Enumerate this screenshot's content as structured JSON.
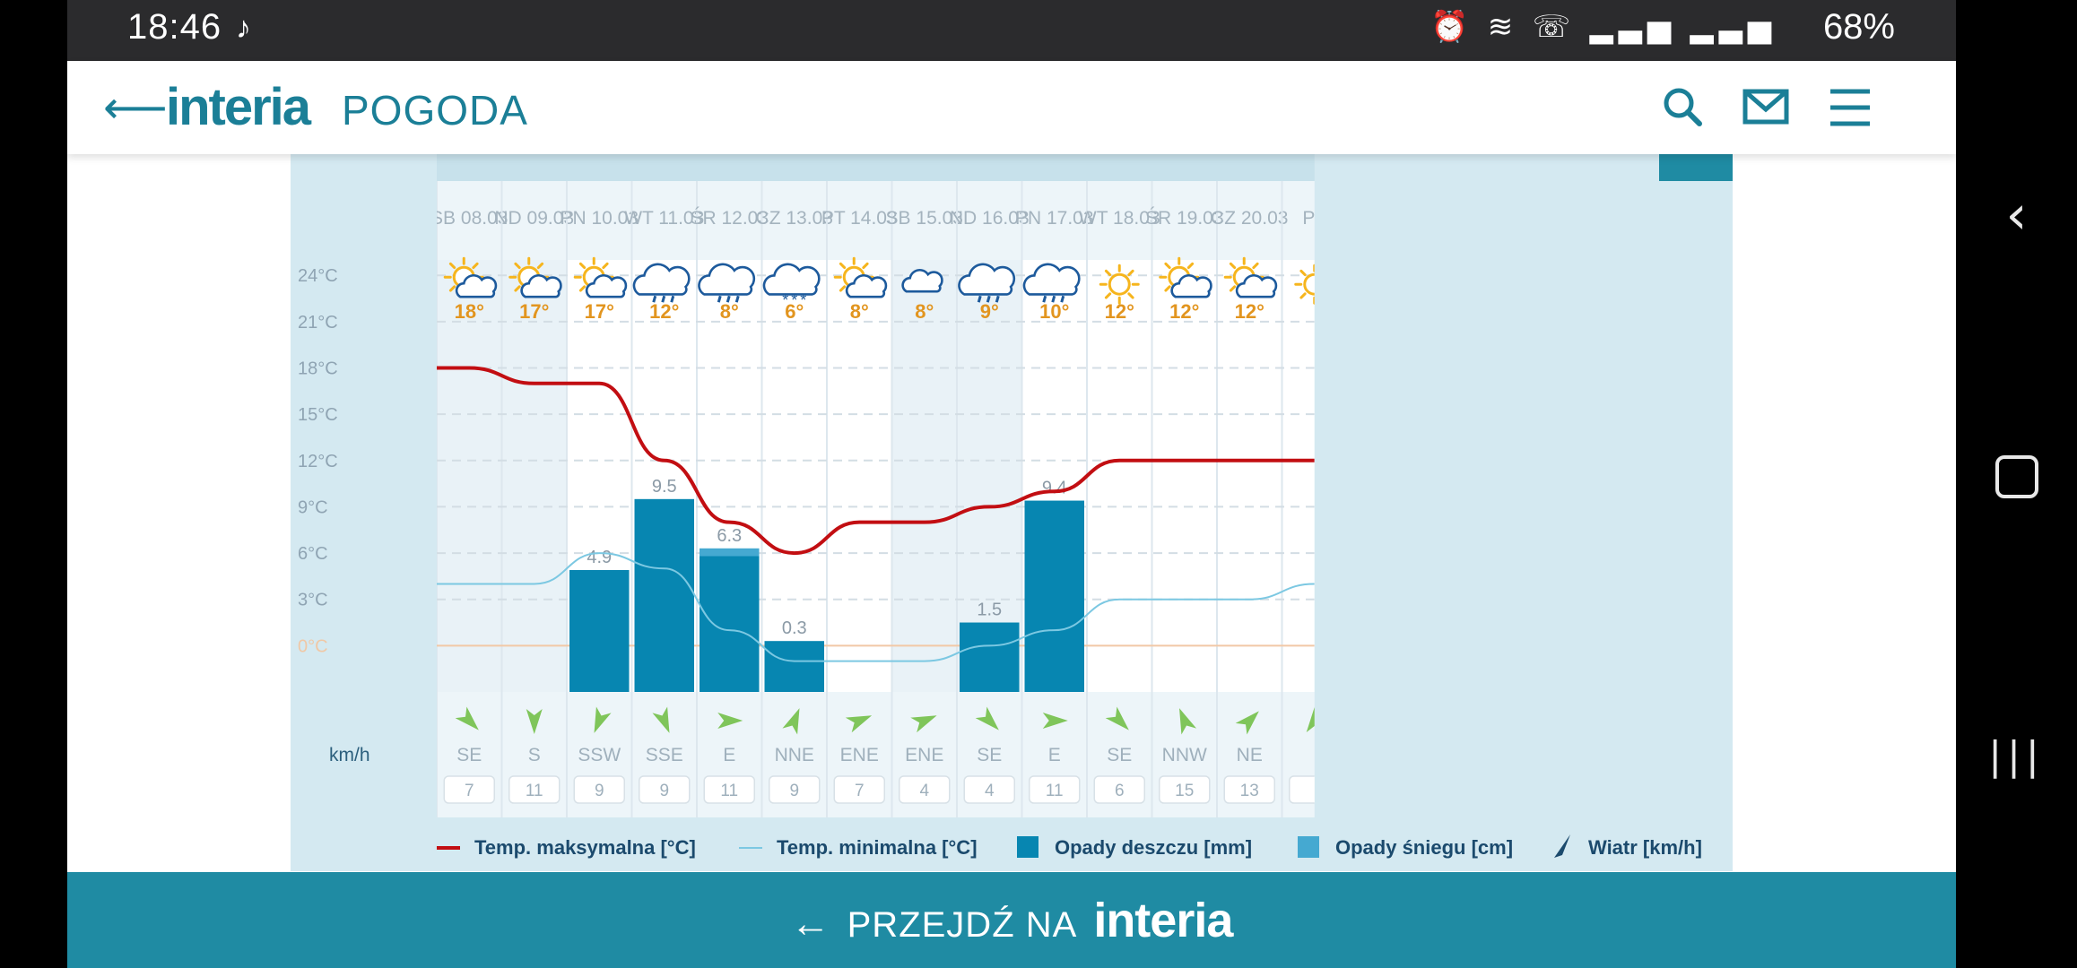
{
  "status_bar": {
    "time": "18:46",
    "battery": "68%"
  },
  "header": {
    "logo": "interia",
    "section": "POGODA"
  },
  "footer": {
    "goto": "PRZEJDŹ NA",
    "brand": "interia"
  },
  "chart_data": {
    "type": "line",
    "categories": [
      "SB 08.03",
      "ND 09.03",
      "PN 10.03",
      "WT 11.03",
      "ŚR 12.03",
      "CZ 13.03",
      "PT 14.03",
      "SB 15.03",
      "ND 16.03",
      "PN 17.03",
      "WT 18.03",
      "ŚR 19.03",
      "CZ 20.03",
      "PT"
    ],
    "weekend": [
      true,
      true,
      false,
      false,
      false,
      false,
      false,
      true,
      true,
      false,
      false,
      false,
      false,
      false
    ],
    "yticks": [
      "24°C",
      "21°C",
      "18°C",
      "15°C",
      "12°C",
      "9°C",
      "6°C",
      "3°C",
      "0°C"
    ],
    "ylim": [
      -3,
      25
    ],
    "series": [
      {
        "name": "Temp. maksymalna [°C]",
        "color": "#c20e12",
        "values": [
          18,
          17,
          17,
          12,
          8,
          6,
          8,
          8,
          9,
          10,
          12,
          12,
          12,
          12
        ]
      },
      {
        "name": "Temp. minimalna [°C]",
        "color": "#7cc8e2",
        "values": [
          4,
          4,
          6,
          5,
          1,
          -1,
          -1,
          -1,
          0,
          1,
          3,
          3,
          3,
          4
        ]
      },
      {
        "name": "Opady deszczu [mm]",
        "color": "#0786b1",
        "values": [
          null,
          null,
          4.9,
          9.5,
          6.3,
          0.3,
          null,
          null,
          1.5,
          9.4,
          null,
          null,
          null,
          null
        ]
      },
      {
        "name": "Opady śniegu [cm]",
        "color": "#45a9d1",
        "values": [
          null,
          null,
          null,
          null,
          0.5,
          null,
          null,
          null,
          null,
          null,
          null,
          null,
          null,
          null
        ]
      }
    ],
    "rain_labels": [
      "",
      "",
      "4.9",
      "9.5",
      "6.3",
      "0.3",
      "",
      "",
      "1.5",
      "9.4",
      "",
      "",
      "",
      ""
    ],
    "day_temps": [
      "18°",
      "17°",
      "17°",
      "12°",
      "8°",
      "6°",
      "8°",
      "8°",
      "9°",
      "10°",
      "12°",
      "12°",
      "12°",
      ""
    ],
    "weather_icons": [
      "sun-cloud-icon",
      "sun-cloud-icon",
      "sun-cloud-icon",
      "rain-cloud-icon",
      "rain-cloud-icon",
      "snow-cloud-icon",
      "sun-cloud-icon",
      "cloud-icon",
      "rain-cloud-icon",
      "rain-cloud-icon",
      "sun-icon",
      "sun-cloud-icon",
      "sun-cloud-icon",
      "sun-icon"
    ],
    "wind_unit": "km/h",
    "wind_dir": [
      "SE",
      "S",
      "SSW",
      "SSE",
      "E",
      "NNE",
      "ENE",
      "ENE",
      "SE",
      "E",
      "SE",
      "NNW",
      "NE",
      ""
    ],
    "wind_speed": [
      "7",
      "11",
      "9",
      "9",
      "11",
      "9",
      "7",
      "4",
      "4",
      "11",
      "6",
      "15",
      "13",
      ""
    ],
    "wind_rotation_deg": [
      135,
      180,
      202.5,
      157.5,
      90,
      22.5,
      67.5,
      67.5,
      135,
      90,
      135,
      337.5,
      45,
      0
    ],
    "legend": [
      {
        "label": "Temp. maksymalna [°C]",
        "kind": "line",
        "color": "#c20e12"
      },
      {
        "label": "Temp. minimalna [°C]",
        "kind": "thin-line",
        "color": "#7cc8e2"
      },
      {
        "label": "Opady deszczu [mm]",
        "kind": "square",
        "color": "#0786b1"
      },
      {
        "label": "Opady śniegu [cm]",
        "kind": "square",
        "color": "#45a9d1"
      },
      {
        "label": "Wiatr [km/h]",
        "kind": "arrow",
        "color": "#1b4a6d"
      }
    ]
  }
}
